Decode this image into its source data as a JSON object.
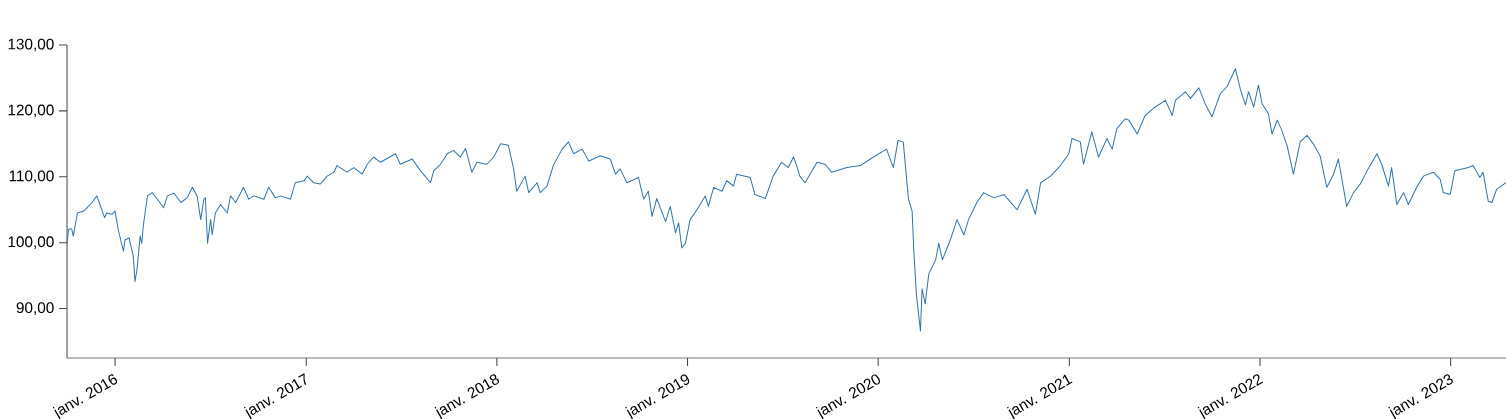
{
  "chart_data": {
    "type": "line",
    "xlim": [
      "2015-10-01",
      "2023-04-17"
    ],
    "xticks": [
      {
        "value": "2016-01",
        "label": "janv. 2016"
      },
      {
        "value": "2017-01",
        "label": "janv. 2017"
      },
      {
        "value": "2018-01",
        "label": "janv. 2018"
      },
      {
        "value": "2019-01",
        "label": "janv. 2019"
      },
      {
        "value": "2020-01",
        "label": "janv. 2020"
      },
      {
        "value": "2021-01",
        "label": "janv. 2021"
      },
      {
        "value": "2022-01",
        "label": "janv. 2022"
      },
      {
        "value": "2023-01",
        "label": "janv. 2023"
      }
    ],
    "ylim": [
      82.5,
      130
    ],
    "yticks": [
      {
        "value": 90,
        "label": "90,00"
      },
      {
        "value": 100,
        "label": "100,00"
      },
      {
        "value": 110,
        "label": "110,00"
      },
      {
        "value": 120,
        "label": "120,00"
      },
      {
        "value": 130,
        "label": "130,00"
      }
    ],
    "grid": false,
    "series": [
      {
        "color": "#3274a9",
        "x": [
          "2015-10-01",
          "2015-10-04",
          "2015-10-10",
          "2015-10-13",
          "2015-10-21",
          "2015-11-02",
          "2015-11-11",
          "2015-11-18",
          "2015-11-27",
          "2015-12-03",
          "2015-12-12",
          "2015-12-16",
          "2015-12-26",
          "2016-01-01",
          "2016-01-07",
          "2016-01-17",
          "2016-01-20",
          "2016-01-28",
          "2016-02-05",
          "2016-02-08",
          "2016-02-12",
          "2016-02-18",
          "2016-02-21",
          "2016-02-24",
          "2016-03-03",
          "2016-03-12",
          "2016-03-22",
          "2016-04-03",
          "2016-04-10",
          "2016-04-23",
          "2016-05-06",
          "2016-05-18",
          "2016-05-28",
          "2016-06-06",
          "2016-06-13",
          "2016-06-19",
          "2016-06-22",
          "2016-06-26",
          "2016-07-02",
          "2016-07-05",
          "2016-07-11",
          "2016-07-21",
          "2016-08-03",
          "2016-08-09",
          "2016-08-19",
          "2016-09-03",
          "2016-09-13",
          "2016-09-23",
          "2016-10-12",
          "2016-10-21",
          "2016-11-03",
          "2016-11-13",
          "2016-12-02",
          "2016-12-11",
          "2016-12-28",
          "2017-01-03",
          "2017-01-15",
          "2017-01-28",
          "2017-02-10",
          "2017-02-23",
          "2017-03-01",
          "2017-03-20",
          "2017-04-02",
          "2017-04-18",
          "2017-04-28",
          "2017-05-10",
          "2017-05-23",
          "2017-06-21",
          "2017-06-30",
          "2017-07-23",
          "2017-08-08",
          "2017-08-27",
          "2017-09-02",
          "2017-09-15",
          "2017-09-28",
          "2017-10-10",
          "2017-10-23",
          "2017-11-02",
          "2017-11-14",
          "2017-11-24",
          "2017-12-13",
          "2017-12-26",
          "2018-01-08",
          "2018-01-23",
          "2018-02-02",
          "2018-02-08",
          "2018-02-24",
          "2018-03-03",
          "2018-03-19",
          "2018-03-25",
          "2018-04-07",
          "2018-04-19",
          "2018-05-06",
          "2018-05-18",
          "2018-05-28",
          "2018-06-13",
          "2018-06-26",
          "2018-07-18",
          "2018-08-06",
          "2018-08-16",
          "2018-08-25",
          "2018-09-07",
          "2018-09-29",
          "2018-10-09",
          "2018-10-18",
          "2018-10-25",
          "2018-11-03",
          "2018-11-20",
          "2018-11-29",
          "2018-12-09",
          "2018-12-15",
          "2018-12-21",
          "2018-12-28",
          "2019-01-06",
          "2019-01-19",
          "2019-02-04",
          "2019-02-10",
          "2019-02-20",
          "2019-03-08",
          "2019-03-17",
          "2019-03-30",
          "2019-04-05",
          "2019-05-01",
          "2019-05-10",
          "2019-05-30",
          "2019-06-14",
          "2019-06-30",
          "2019-07-13",
          "2019-07-23",
          "2019-07-29",
          "2019-08-04",
          "2019-08-14",
          "2019-09-06",
          "2019-09-21",
          "2019-10-04",
          "2019-11-02",
          "2019-11-28",
          "2019-12-23",
          "2020-01-17",
          "2020-01-30",
          "2020-02-08",
          "2020-02-18",
          "2020-02-28",
          "2020-03-06",
          "2020-03-09",
          "2020-03-14",
          "2020-03-19",
          "2020-03-22",
          "2020-03-25",
          "2020-03-31",
          "2020-04-07",
          "2020-04-20",
          "2020-04-26",
          "2020-05-03",
          "2020-05-18",
          "2020-05-31",
          "2020-06-13",
          "2020-06-22",
          "2020-07-08",
          "2020-07-21",
          "2020-08-09",
          "2020-08-29",
          "2020-09-23",
          "2020-10-12",
          "2020-10-28",
          "2020-11-07",
          "2020-11-26",
          "2020-12-15",
          "2020-12-31",
          "2021-01-06",
          "2021-01-22",
          "2021-01-28",
          "2021-02-13",
          "2021-02-26",
          "2021-03-14",
          "2021-03-24",
          "2021-04-02",
          "2021-04-18",
          "2021-04-25",
          "2021-05-11",
          "2021-05-26",
          "2021-06-11",
          "2021-07-04",
          "2021-07-17",
          "2021-07-23",
          "2021-08-11",
          "2021-08-21",
          "2021-09-06",
          "2021-09-18",
          "2021-10-01",
          "2021-10-17",
          "2021-10-30",
          "2021-11-15",
          "2021-11-24",
          "2021-12-04",
          "2021-12-10",
          "2021-12-20",
          "2021-12-29",
          "2022-01-05",
          "2022-01-17",
          "2022-01-24",
          "2022-02-03",
          "2022-02-12",
          "2022-02-22",
          "2022-03-06",
          "2022-03-19",
          "2022-04-01",
          "2022-04-13",
          "2022-04-26",
          "2022-05-09",
          "2022-05-22",
          "2022-05-31",
          "2022-06-16",
          "2022-06-29",
          "2022-07-12",
          "2022-07-25",
          "2022-08-13",
          "2022-08-22",
          "2022-09-04",
          "2022-09-10",
          "2022-09-20",
          "2022-10-03",
          "2022-10-12",
          "2022-10-28",
          "2022-11-10",
          "2022-11-29",
          "2022-12-12",
          "2022-12-18",
          "2022-12-31",
          "2023-01-09",
          "2023-02-04",
          "2023-02-13",
          "2023-02-26",
          "2023-03-04",
          "2023-03-14",
          "2023-03-21",
          "2023-03-30",
          "2023-04-17"
        ],
        "values": [
          99.9,
          102.0,
          102.1,
          101.0,
          104.5,
          104.8,
          105.5,
          106.1,
          107.1,
          105.8,
          103.8,
          104.5,
          104.3,
          104.8,
          102.0,
          98.7,
          100.4,
          100.7,
          97.9,
          94.1,
          95.9,
          101.0,
          99.9,
          102.5,
          107.1,
          107.6,
          106.6,
          105.3,
          107.1,
          107.5,
          106.1,
          106.8,
          108.4,
          107.1,
          103.5,
          106.6,
          106.8,
          99.9,
          103.5,
          101.2,
          104.5,
          105.8,
          104.5,
          107.1,
          106.1,
          108.4,
          106.6,
          107.1,
          106.6,
          108.4,
          106.8,
          107.1,
          106.6,
          109.1,
          109.4,
          110.1,
          109.1,
          108.9,
          110.1,
          110.7,
          111.7,
          110.7,
          111.4,
          110.4,
          111.9,
          113.0,
          112.2,
          113.5,
          111.9,
          112.7,
          110.9,
          109.1,
          110.9,
          111.9,
          113.5,
          114.0,
          113.0,
          114.3,
          110.7,
          112.2,
          111.9,
          113.0,
          115.0,
          114.8,
          111.2,
          107.8,
          110.1,
          107.6,
          109.1,
          107.6,
          108.6,
          111.7,
          114.2,
          115.3,
          113.5,
          114.2,
          112.4,
          113.2,
          112.7,
          110.4,
          111.2,
          109.1,
          109.9,
          106.6,
          107.8,
          104.0,
          106.7,
          103.2,
          105.5,
          101.5,
          103.0,
          99.2,
          99.9,
          103.5,
          105.0,
          107.1,
          105.5,
          108.4,
          107.8,
          109.4,
          108.6,
          110.4,
          109.9,
          107.3,
          106.7,
          110.1,
          112.2,
          111.4,
          113.0,
          111.7,
          110.1,
          109.1,
          112.2,
          111.9,
          110.7,
          111.4,
          111.7,
          113.0,
          114.2,
          111.4,
          115.5,
          115.3,
          106.6,
          104.8,
          99.2,
          92.3,
          88.7,
          86.6,
          93.0,
          90.7,
          95.3,
          97.4,
          99.9,
          97.4,
          100.4,
          103.5,
          101.2,
          103.5,
          106.1,
          107.6,
          106.8,
          107.3,
          105.0,
          108.1,
          104.3,
          109.1,
          110.1,
          111.7,
          113.5,
          115.8,
          115.3,
          111.9,
          116.8,
          113.0,
          115.8,
          114.2,
          117.3,
          118.8,
          118.6,
          116.5,
          119.3,
          120.4,
          121.6,
          119.3,
          121.6,
          122.9,
          121.9,
          123.5,
          121.1,
          119.1,
          122.6,
          123.7,
          126.4,
          123.4,
          120.9,
          122.9,
          120.6,
          123.9,
          121.1,
          119.6,
          116.5,
          118.6,
          117.0,
          114.7,
          110.4,
          115.3,
          116.3,
          115.0,
          113.2,
          108.4,
          110.4,
          112.7,
          105.5,
          107.6,
          108.9,
          110.9,
          113.5,
          111.9,
          108.6,
          111.4,
          105.8,
          107.6,
          105.8,
          108.4,
          110.1,
          110.7,
          109.6,
          107.6,
          107.3,
          110.9,
          111.4,
          111.7,
          109.9,
          110.7,
          106.3,
          106.1,
          108.1,
          109.1
        ]
      }
    ]
  }
}
